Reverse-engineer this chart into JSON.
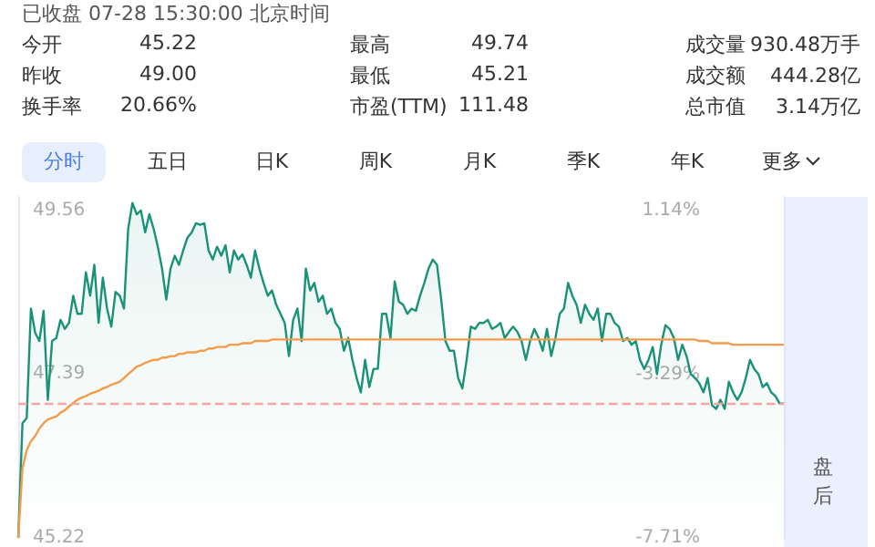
{
  "chart_data": [
    {
      "type": "other",
      "title": "已收盘 07-28 15:30:00 北京时间",
      "annotations": [
        "今开",
        "45.22",
        "最高",
        "49.74",
        "成交量",
        "930.48万手",
        "昨收",
        "49.00",
        "最低",
        "45.21",
        "成交额",
        "444.28亿",
        "换手率",
        "20.66%",
        "市盈(TTM)",
        "111.48",
        "总市值",
        "3.14万亿",
        "分时",
        "五日",
        "日K",
        "周K",
        "月K",
        "季K",
        "年K",
        "更多"
      ]
    },
    {
      "type": "line",
      "categories": [
        null,
        null,
        null,
        null,
        null,
        null,
        null,
        null,
        null,
        null,
        null,
        null,
        null,
        null,
        null,
        null,
        null,
        null,
        null,
        null,
        null,
        null,
        null,
        null,
        null,
        null,
        null,
        null,
        null,
        null,
        null,
        null,
        null,
        null,
        null,
        null,
        null,
        null,
        null,
        null,
        null,
        null,
        null,
        null,
        null,
        null,
        null,
        null,
        null,
        null,
        null,
        null,
        null,
        null,
        null,
        null,
        null,
        null,
        null,
        null,
        null,
        null,
        null,
        null,
        null,
        null,
        null,
        null,
        null,
        null,
        null,
        null,
        null,
        null,
        null,
        null,
        null,
        null,
        null,
        null,
        null,
        null,
        null,
        null,
        null,
        null,
        null,
        null,
        null,
        null,
        null,
        null,
        null,
        null,
        null,
        null,
        null,
        null,
        null,
        null,
        null,
        null,
        null,
        null,
        null,
        null,
        null,
        null,
        null,
        null,
        null,
        null,
        null,
        null,
        null,
        null,
        null,
        null,
        null,
        null,
        null,
        null,
        null,
        null,
        null,
        null,
        null,
        null,
        null,
        null,
        null,
        null,
        null,
        null,
        null,
        null,
        null,
        null,
        null,
        null,
        null,
        null,
        null,
        null,
        null,
        null,
        null,
        null,
        null,
        null,
        null,
        null,
        null,
        null,
        null,
        null,
        null,
        null,
        null,
        null,
        null,
        null,
        null,
        null,
        null,
        null,
        null,
        null,
        null,
        null,
        null,
        null,
        null,
        null,
        null,
        null,
        null,
        null,
        null,
        null,
        null,
        null
      ],
      "series": [
        {
          "type": "area",
          "color": "#1a9278",
          "values": [
            45.22,
            46.74,
            46.81,
            48.26,
            47.94,
            47.83,
            48.23,
            47.05,
            47.83,
            47.87,
            48.11,
            47.99,
            48.07,
            48.43,
            48.19,
            48.19,
            48.74,
            48.43,
            48.84,
            48.07,
            48.67,
            48.26,
            48.02,
            48.48,
            48.43,
            48.26,
            49.32,
            49.66,
            49.51,
            49.56,
            49.27,
            49.51,
            49.32,
            49.08,
            48.79,
            48.38,
            48.79,
            48.96,
            48.84,
            49.03,
            49.2,
            49.27,
            49.39,
            49.37,
            49.39,
            49.03,
            48.91,
            49.08,
            48.96,
            49.1,
            48.74,
            49.03,
            48.91,
            48.98,
            48.84,
            48.67,
            49.03,
            48.79,
            48.6,
            48.43,
            48.5,
            48.31,
            48.19,
            48.07,
            47.63,
            48.11,
            48.26,
            47.83,
            48.79,
            48.5,
            48.6,
            48.35,
            48.43,
            48.19,
            48.26,
            48.07,
            47.99,
            47.7,
            47.87,
            47.58,
            47.34,
            47.15,
            47.58,
            47.22,
            47.46,
            47.46,
            48.19,
            48.19,
            47.87,
            48.62,
            48.35,
            48.31,
            48.19,
            48.26,
            48.23,
            48.43,
            48.6,
            48.79,
            48.91,
            48.84,
            48.38,
            47.83,
            47.7,
            47.7,
            47.34,
            47.2,
            47.58,
            48.02,
            47.99,
            48.07,
            48.07,
            48.11,
            47.99,
            48.02,
            48.07,
            47.87,
            47.95,
            48.02,
            47.95,
            47.83,
            47.58,
            47.83,
            47.99,
            47.87,
            47.7,
            47.99,
            47.63,
            47.87,
            48.19,
            48.26,
            48.6,
            48.43,
            48.31,
            48.07,
            48.31,
            48.19,
            48.11,
            48.26,
            47.83,
            48.19,
            48.19,
            48.07,
            48.02,
            47.83,
            47.87,
            47.78,
            47.83,
            47.58,
            47.46,
            47.58,
            47.75,
            47.39,
            47.78,
            48.04,
            47.99,
            47.87,
            47.58,
            47.78,
            47.63,
            47.39,
            47.34,
            47.27,
            47.15,
            47.34,
            46.98,
            46.93,
            47.05,
            46.93,
            47.29,
            47.15,
            47.05,
            47.15,
            47.34,
            47.58,
            47.46,
            47.39,
            47.22,
            47.27,
            47.15,
            47.1,
            47.0,
            47.0
          ]
        },
        {
          "type": "line",
          "color": "#f39c4a",
          "values": [
            45.22,
            46.14,
            46.38,
            46.5,
            46.57,
            46.67,
            46.74,
            46.79,
            46.81,
            46.83,
            46.88,
            46.91,
            46.96,
            47.01,
            47.05,
            47.08,
            47.1,
            47.13,
            47.15,
            47.17,
            47.2,
            47.22,
            47.25,
            47.27,
            47.29,
            47.34,
            47.39,
            47.44,
            47.49,
            47.51,
            47.54,
            47.56,
            47.58,
            47.58,
            47.61,
            47.61,
            47.63,
            47.63,
            47.66,
            47.66,
            47.68,
            47.68,
            47.68,
            47.7,
            47.7,
            47.73,
            47.73,
            47.75,
            47.75,
            47.75,
            47.78,
            47.78,
            47.78,
            47.8,
            47.8,
            47.8,
            47.83,
            47.83,
            47.83,
            47.83,
            47.85,
            47.85,
            47.85,
            47.85,
            47.85,
            47.85,
            47.85,
            47.85,
            47.85,
            47.85,
            47.85,
            47.85,
            47.85,
            47.85,
            47.85,
            47.85,
            47.85,
            47.85,
            47.85,
            47.85,
            47.85,
            47.85,
            47.85,
            47.85,
            47.85,
            47.85,
            47.85,
            47.85,
            47.85,
            47.85,
            47.85,
            47.85,
            47.85,
            47.85,
            47.85,
            47.85,
            47.85,
            47.85,
            47.85,
            47.85,
            47.85,
            47.85,
            47.85,
            47.85,
            47.85,
            47.85,
            47.85,
            47.85,
            47.85,
            47.85,
            47.85,
            47.85,
            47.85,
            47.85,
            47.85,
            47.85,
            47.85,
            47.85,
            47.85,
            47.85,
            47.85,
            47.85,
            47.85,
            47.85,
            47.85,
            47.85,
            47.85,
            47.85,
            47.85,
            47.85,
            47.85,
            47.85,
            47.85,
            47.85,
            47.85,
            47.85,
            47.85,
            47.85,
            47.85,
            47.85,
            47.85,
            47.85,
            47.85,
            47.85,
            47.85,
            47.85,
            47.85,
            47.85,
            47.85,
            47.85,
            47.85,
            47.85,
            47.85,
            47.85,
            47.85,
            47.85,
            47.85,
            47.85,
            47.85,
            47.85,
            47.85,
            47.83,
            47.83,
            47.83,
            47.8,
            47.8,
            47.8,
            47.8,
            47.8,
            47.78,
            47.78,
            47.78,
            47.78,
            47.78,
            47.78,
            47.78,
            47.78,
            47.78,
            47.78,
            47.78,
            47.78,
            47.78
          ]
        }
      ],
      "ylim": [
        45.21,
        49.74
      ],
      "yticks": [
        49.56,
        47.39,
        45.22
      ],
      "y2lim": [
        -7.73,
        1.51
      ],
      "y2ticks": [
        {
          "value": 1.14,
          "label": "1.14%"
        },
        {
          "value": -3.29,
          "label": "-3.29%"
        },
        {
          "value": -7.71,
          "label": "-7.71%"
        }
      ],
      "ref_lines": [
        {
          "axis": "y",
          "value": 47.0,
          "color": "#f4a5a5",
          "line_style": "dashed"
        }
      ],
      "annotations": [
        "盘后"
      ]
    }
  ]
}
